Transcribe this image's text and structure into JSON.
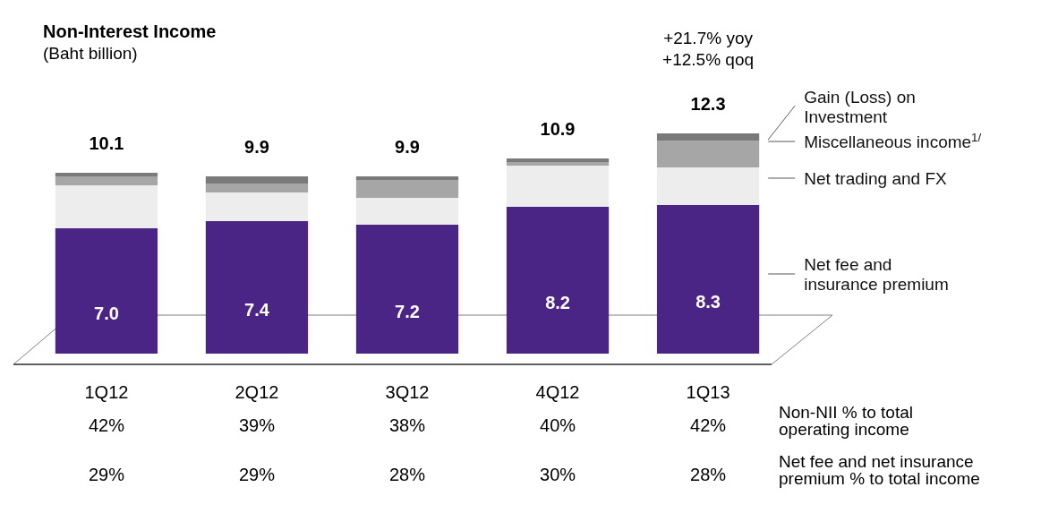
{
  "chart_data": {
    "type": "bar",
    "title": "Non-Interest Income",
    "subtitle": "(Baht billion)",
    "stacked": true,
    "legend": "right",
    "categories": [
      "1Q12",
      "2Q12",
      "3Q12",
      "4Q12",
      "1Q13"
    ],
    "series": [
      {
        "name": "Net fee and insurance premium",
        "color": "#4b2585",
        "values": [
          7.0,
          7.4,
          7.2,
          8.2,
          8.3
        ],
        "value_labels": [
          "7.0",
          "7.4",
          "7.2",
          "8.2",
          "8.3"
        ]
      },
      {
        "name": "Net trading and FX",
        "color": "#ededed",
        "values": [
          2.4,
          1.6,
          1.5,
          2.3,
          2.1
        ]
      },
      {
        "name": "Miscellaneous income$^{1/}$",
        "color": "#a6a6a6",
        "values": [
          0.5,
          0.5,
          1.0,
          0.2,
          1.5
        ]
      },
      {
        "name": "Gain (Loss) on Investment",
        "color": "#7a7a7a",
        "values": [
          0.2,
          0.4,
          0.2,
          0.2,
          0.4
        ]
      }
    ],
    "totals": [
      "10.1",
      "9.9",
      "9.9",
      "10.9",
      "12.3"
    ],
    "annotations": [
      "+21.7% yoy",
      "+12.5% qoq",
      "Non-NII % to total operating income",
      "Net fee and net insurance premium % to total income",
      "42%",
      "39%",
      "38%",
      "40%",
      "42%",
      "29%",
      "29%",
      "28%",
      "30%",
      "28%"
    ]
  }
}
